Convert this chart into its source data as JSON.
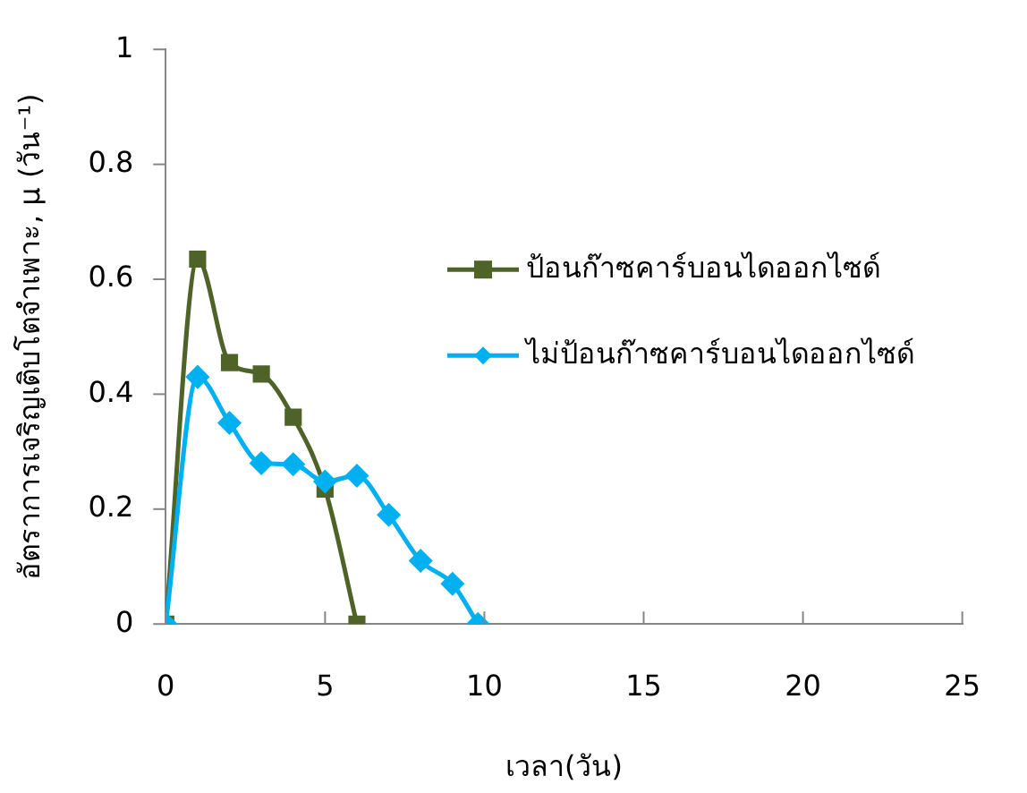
{
  "chart_data": {
    "type": "line",
    "xlabel": "เวลา(วัน)",
    "ylabel": "อัตราการเจริญเติบโตจำเพาะ, μ (วัน⁻¹)",
    "xlim": [
      0,
      25
    ],
    "xticks": [
      0,
      5,
      10,
      15,
      20,
      25
    ],
    "ylim": [
      0,
      1
    ],
    "yticks": [
      0,
      0.2,
      0.4,
      0.6,
      0.8,
      1
    ],
    "grid": false,
    "legend": "right",
    "series": [
      {
        "name": "ป้อนก๊าซคาร์บอนไดออกไซด์",
        "color": "#4f6228",
        "marker": "square",
        "x": [
          0,
          1,
          2,
          3,
          4,
          5,
          6
        ],
        "values": [
          0,
          0.635,
          0.455,
          0.435,
          0.36,
          0.235,
          0
        ]
      },
      {
        "name": "ไม่ป้อนก๊าซคาร์บอนไดออกไซด์",
        "color": "#00b0f0",
        "marker": "diamond",
        "x": [
          0,
          1,
          2,
          3,
          4,
          5,
          6,
          7,
          8,
          9,
          9.8
        ],
        "values": [
          0,
          0.43,
          0.35,
          0.28,
          0.278,
          0.248,
          0.258,
          0.19,
          0.11,
          0.07,
          0
        ]
      }
    ]
  }
}
